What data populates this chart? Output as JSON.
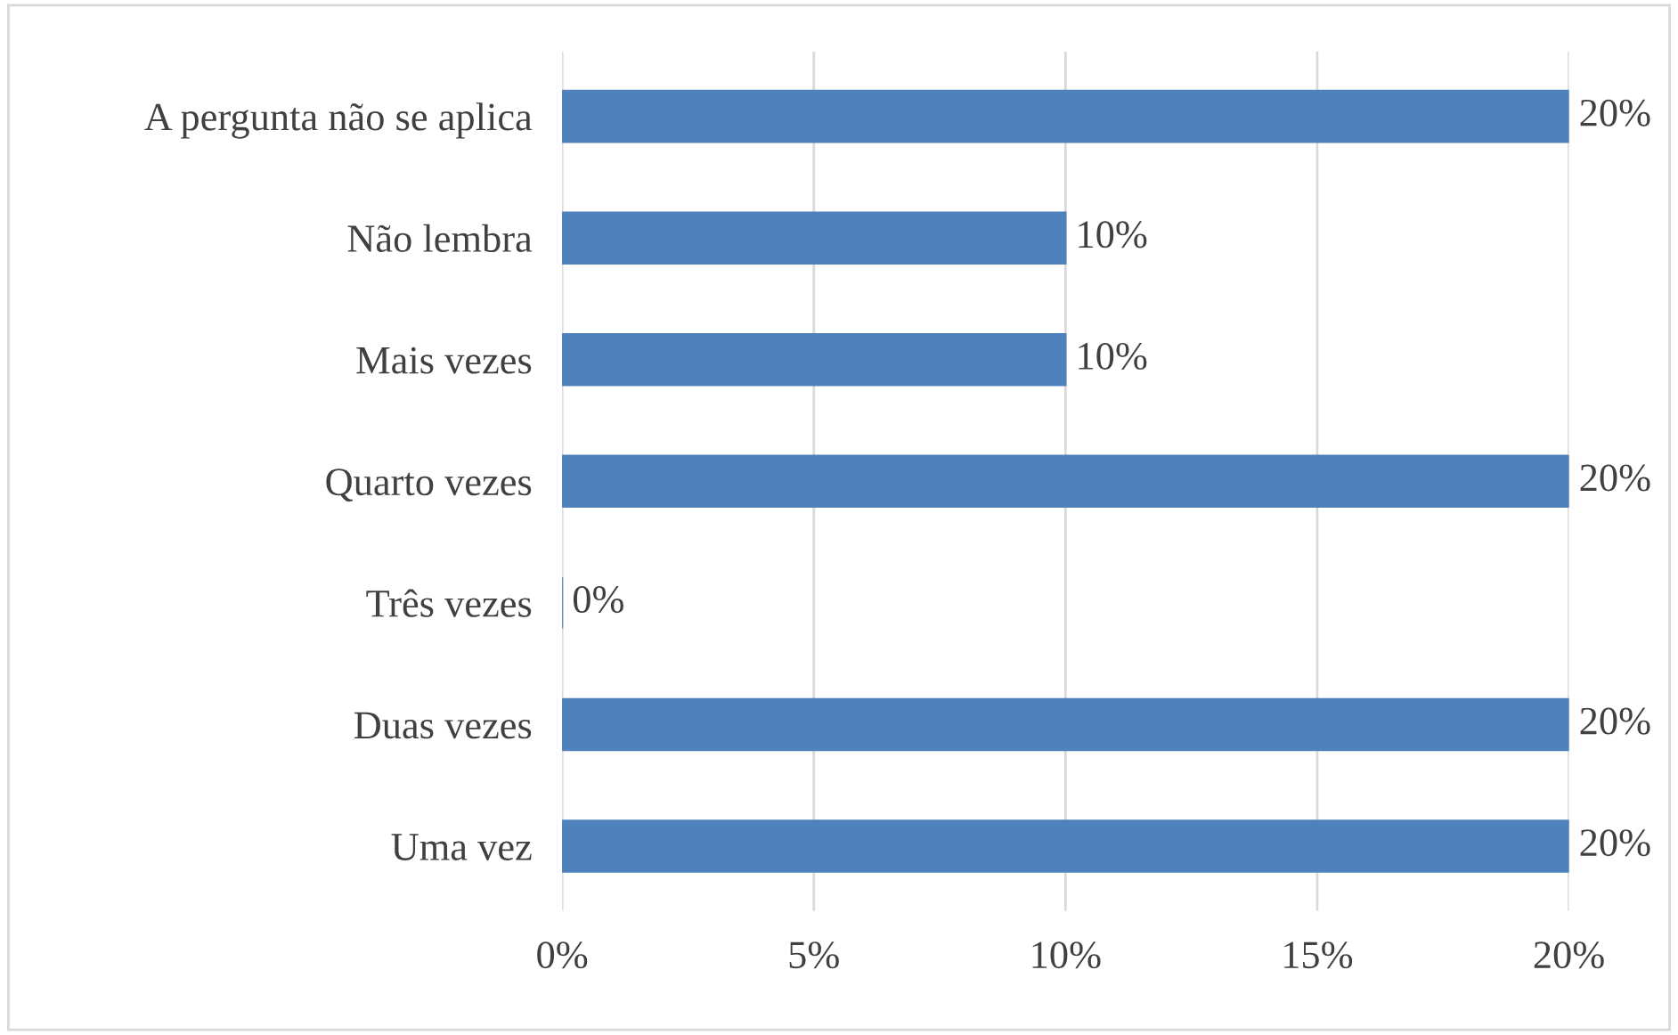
{
  "chart_data": {
    "type": "bar",
    "orientation": "horizontal",
    "categories": [
      "A pergunta não se aplica",
      "Não lembra",
      "Mais vezes",
      "Quarto vezes",
      "Três vezes",
      "Duas vezes",
      "Uma vez"
    ],
    "values": [
      20,
      10,
      10,
      20,
      0,
      20,
      20
    ],
    "value_labels": [
      "20%",
      "10%",
      "10%",
      "20%",
      "0%",
      "20%",
      "20%"
    ],
    "color": "#4f81bd",
    "xlim": [
      0,
      20
    ],
    "xticks": [
      {
        "value": 0,
        "label": "0%"
      },
      {
        "value": 5,
        "label": "5%"
      },
      {
        "value": 10,
        "label": "10%"
      },
      {
        "value": 15,
        "label": "15%"
      },
      {
        "value": 20,
        "label": "20%"
      }
    ],
    "grid": "x",
    "legend": false
  }
}
